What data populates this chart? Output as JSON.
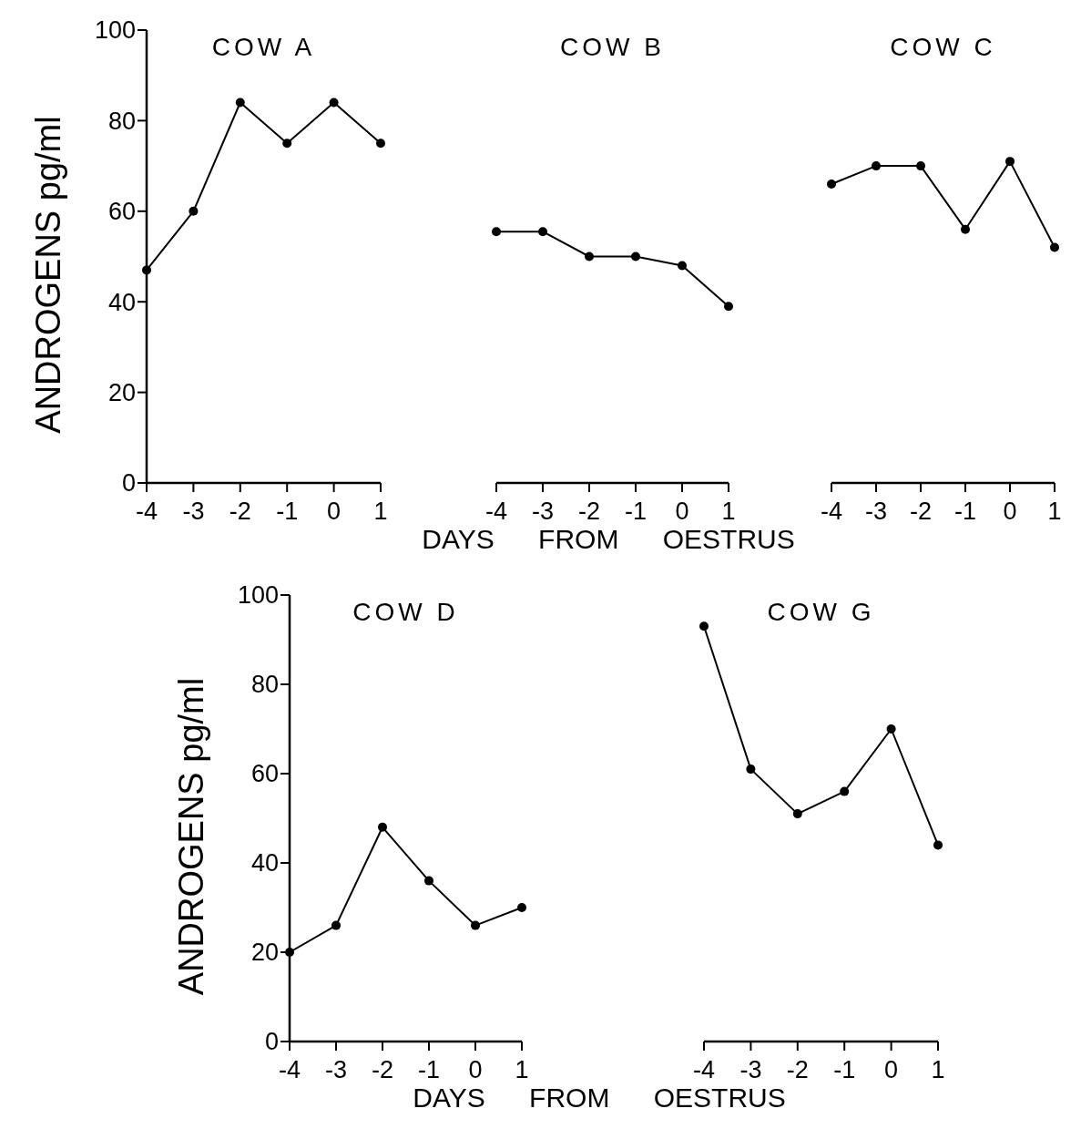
{
  "chart_data": [
    {
      "type": "line",
      "title": "COW A",
      "ylabel": "ANDROGENS pg/ml",
      "x": [
        -4,
        -3,
        -2,
        -1,
        0,
        1
      ],
      "xlim": [
        -4,
        1
      ],
      "xticks": [
        -4,
        -3,
        -2,
        -1,
        0,
        1
      ],
      "ylim": [
        0,
        100
      ],
      "yticks": [
        0,
        20,
        40,
        60,
        80,
        100
      ],
      "marker": "circle",
      "series": [
        {
          "color": "#000000",
          "values": [
            47,
            60,
            84,
            75,
            84,
            75
          ]
        }
      ]
    },
    {
      "type": "line",
      "title": "COW B",
      "xlabel": "DAYS FROM OESTRUS",
      "x": [
        -4,
        -3,
        -2,
        -1,
        0,
        1
      ],
      "xlim": [
        -4,
        1
      ],
      "xticks": [
        -4,
        -3,
        -2,
        -1,
        0,
        1
      ],
      "ylim": [
        0,
        100
      ],
      "tick_labels": "x",
      "marker": "circle",
      "series": [
        {
          "color": "#000000",
          "values": [
            55.5,
            55.5,
            50,
            50,
            48,
            39
          ]
        }
      ]
    },
    {
      "type": "line",
      "title": "COW C",
      "x": [
        -4,
        -3,
        -2,
        -1,
        0,
        1
      ],
      "xlim": [
        -4,
        1
      ],
      "xticks": [
        -4,
        -3,
        -2,
        -1,
        0,
        1
      ],
      "ylim": [
        0,
        100
      ],
      "tick_labels": "x",
      "marker": "circle",
      "series": [
        {
          "color": "#000000",
          "values": [
            66,
            70,
            70,
            56,
            71,
            52
          ]
        }
      ]
    },
    {
      "type": "line",
      "title": "COW D",
      "ylabel": "ANDROGENS pg/ml",
      "xlabel": "DAYS FROM OESTRUS",
      "x": [
        -4,
        -3,
        -2,
        -1,
        0,
        1
      ],
      "xlim": [
        -4,
        1
      ],
      "xticks": [
        -4,
        -3,
        -2,
        -1,
        0,
        1
      ],
      "ylim": [
        0,
        100
      ],
      "yticks": [
        0,
        20,
        40,
        60,
        80,
        100
      ],
      "marker": "circle",
      "series": [
        {
          "color": "#000000",
          "values": [
            20,
            26,
            48,
            36,
            26,
            30
          ]
        }
      ]
    },
    {
      "type": "line",
      "title": "COW G",
      "x": [
        -4,
        -3,
        -2,
        -1,
        0,
        1
      ],
      "xlim": [
        -4,
        1
      ],
      "xticks": [
        -4,
        -3,
        -2,
        -1,
        0,
        1
      ],
      "ylim": [
        0,
        100
      ],
      "tick_labels": "x",
      "marker": "circle",
      "series": [
        {
          "color": "#000000",
          "values": [
            93,
            61,
            51,
            56,
            70,
            44
          ]
        }
      ]
    }
  ]
}
